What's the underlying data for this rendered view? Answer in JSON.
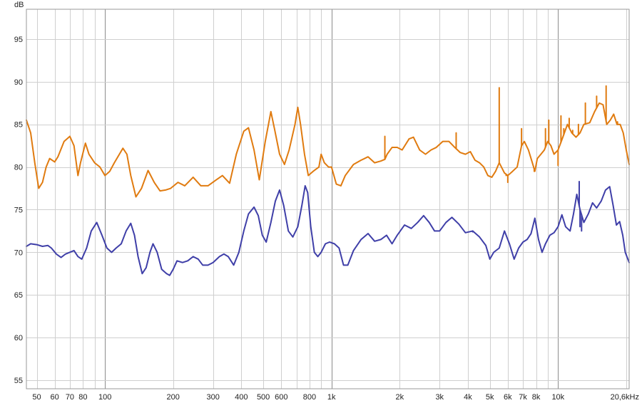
{
  "chart_data": {
    "type": "line",
    "title": "",
    "xlabel": "",
    "ylabel": "dB",
    "x_scale": "log",
    "x_unit": "Hz",
    "xlim": [
      45,
      20600
    ],
    "ylim": [
      54,
      98.5
    ],
    "grid": true,
    "legend": "none",
    "y_ticks": [
      55,
      60,
      65,
      70,
      75,
      80,
      85,
      90,
      95
    ],
    "y_tick_labels": [
      "55",
      "60",
      "65",
      "70",
      "75",
      "80",
      "85",
      "90",
      "95"
    ],
    "x_ticks": [
      50,
      60,
      70,
      80,
      100,
      200,
      300,
      400,
      500,
      600,
      800,
      1000,
      2000,
      3000,
      4000,
      5000,
      6000,
      7000,
      8000,
      10000,
      20600
    ],
    "x_tick_labels": [
      "50",
      "60",
      "70",
      "80",
      "100",
      "200",
      "300",
      "400",
      "500",
      "600",
      "800",
      "1k",
      "2k",
      "3k",
      "4k",
      "5k",
      "6k",
      "7k",
      "8k",
      "10k",
      "20,6kHz"
    ],
    "series": [
      {
        "color": "#e07b10",
        "points": [
          [
            45,
            85.5
          ],
          [
            47,
            84
          ],
          [
            49,
            80.5
          ],
          [
            51,
            77.5
          ],
          [
            53,
            78.2
          ],
          [
            55,
            80
          ],
          [
            57,
            81
          ],
          [
            60,
            80.6
          ],
          [
            62,
            81.2
          ],
          [
            66,
            83
          ],
          [
            70,
            83.6
          ],
          [
            73,
            82.5
          ],
          [
            76,
            79
          ],
          [
            78,
            80.5
          ],
          [
            82,
            82.8
          ],
          [
            85,
            81.5
          ],
          [
            90,
            80.5
          ],
          [
            95,
            80
          ],
          [
            100,
            79
          ],
          [
            105,
            79.5
          ],
          [
            110,
            80.5
          ],
          [
            120,
            82.2
          ],
          [
            125,
            81.5
          ],
          [
            130,
            79
          ],
          [
            137,
            76.5
          ],
          [
            145,
            77.5
          ],
          [
            155,
            79.6
          ],
          [
            165,
            78.2
          ],
          [
            175,
            77.2
          ],
          [
            185,
            77.3
          ],
          [
            195,
            77.5
          ],
          [
            210,
            78.2
          ],
          [
            225,
            77.8
          ],
          [
            245,
            78.8
          ],
          [
            265,
            77.8
          ],
          [
            285,
            77.8
          ],
          [
            310,
            78.5
          ],
          [
            330,
            79
          ],
          [
            355,
            78.1
          ],
          [
            380,
            81.5
          ],
          [
            410,
            84.2
          ],
          [
            430,
            84.6
          ],
          [
            455,
            82
          ],
          [
            480,
            78.5
          ],
          [
            510,
            83
          ],
          [
            540,
            86.5
          ],
          [
            560,
            84.5
          ],
          [
            590,
            81.5
          ],
          [
            620,
            80.3
          ],
          [
            650,
            82
          ],
          [
            690,
            85
          ],
          [
            710,
            87
          ],
          [
            730,
            85
          ],
          [
            760,
            81.5
          ],
          [
            790,
            79
          ],
          [
            830,
            79.5
          ],
          [
            880,
            80
          ],
          [
            900,
            81.5
          ],
          [
            930,
            80.5
          ],
          [
            970,
            80
          ],
          [
            1000,
            80
          ],
          [
            1050,
            78
          ],
          [
            1100,
            77.8
          ],
          [
            1150,
            79
          ],
          [
            1250,
            80.3
          ],
          [
            1350,
            80.8
          ],
          [
            1450,
            81.2
          ],
          [
            1550,
            80.5
          ],
          [
            1650,
            80.7
          ],
          [
            1720,
            80.9
          ],
          [
            1760,
            81.5
          ],
          [
            1850,
            82.3
          ],
          [
            1950,
            82.3
          ],
          [
            2050,
            82
          ],
          [
            2200,
            83.3
          ],
          [
            2300,
            83.5
          ],
          [
            2450,
            82
          ],
          [
            2600,
            81.5
          ],
          [
            2750,
            82
          ],
          [
            2900,
            82.3
          ],
          [
            3100,
            83
          ],
          [
            3300,
            83
          ],
          [
            3500,
            82.3
          ],
          [
            3700,
            81.7
          ],
          [
            3900,
            81.5
          ],
          [
            4100,
            81.8
          ],
          [
            4300,
            80.8
          ],
          [
            4500,
            80.5
          ],
          [
            4700,
            80
          ],
          [
            4900,
            79
          ],
          [
            5100,
            78.8
          ],
          [
            5300,
            79.5
          ],
          [
            5500,
            80.5
          ],
          [
            5800,
            79.3
          ],
          [
            6000,
            79
          ],
          [
            6300,
            79.5
          ],
          [
            6600,
            80
          ],
          [
            6900,
            82.5
          ],
          [
            7100,
            83
          ],
          [
            7400,
            82
          ],
          [
            7700,
            80.5
          ],
          [
            7900,
            79.5
          ],
          [
            8100,
            81
          ],
          [
            8400,
            81.5
          ],
          [
            8700,
            82
          ],
          [
            9000,
            83
          ],
          [
            9300,
            82.5
          ],
          [
            9600,
            81.5
          ],
          [
            10000,
            82
          ],
          [
            10500,
            83.5
          ],
          [
            11000,
            85
          ],
          [
            11500,
            84
          ],
          [
            12000,
            83.5
          ],
          [
            12500,
            84
          ],
          [
            13000,
            85
          ],
          [
            13800,
            85.2
          ],
          [
            14500,
            86.5
          ],
          [
            15200,
            87.5
          ],
          [
            15800,
            87.3
          ],
          [
            16400,
            85
          ],
          [
            17000,
            85.5
          ],
          [
            17600,
            86.2
          ],
          [
            18200,
            85
          ],
          [
            18800,
            85
          ],
          [
            19400,
            84
          ],
          [
            20000,
            82
          ],
          [
            20600,
            80.3
          ]
        ],
        "spikes": [
          [
            1720,
            83.6
          ],
          [
            3550,
            84
          ],
          [
            5500,
            89.3
          ],
          [
            5900,
            79
          ],
          [
            6000,
            78.2
          ],
          [
            6900,
            84.5
          ],
          [
            7850,
            79.5
          ],
          [
            8800,
            84.5
          ],
          [
            9100,
            85.5
          ],
          [
            10000,
            80.2
          ],
          [
            10300,
            86
          ],
          [
            10600,
            84.5
          ],
          [
            11200,
            85.7
          ],
          [
            11600,
            84.3
          ],
          [
            12300,
            85
          ],
          [
            13200,
            87.5
          ],
          [
            14800,
            88.3
          ],
          [
            16300,
            89.5
          ],
          [
            18300,
            85.3
          ]
        ]
      },
      {
        "color": "#3f3fa8",
        "points": [
          [
            45,
            70.7
          ],
          [
            47,
            71
          ],
          [
            50,
            70.9
          ],
          [
            53,
            70.7
          ],
          [
            56,
            70.8
          ],
          [
            58,
            70.5
          ],
          [
            61,
            69.8
          ],
          [
            64,
            69.4
          ],
          [
            67,
            69.8
          ],
          [
            70,
            70
          ],
          [
            73,
            70.2
          ],
          [
            76,
            69.5
          ],
          [
            79,
            69.2
          ],
          [
            83,
            70.5
          ],
          [
            87,
            72.5
          ],
          [
            92,
            73.5
          ],
          [
            97,
            72
          ],
          [
            102,
            70.5
          ],
          [
            107,
            70
          ],
          [
            112,
            70.5
          ],
          [
            118,
            71
          ],
          [
            124,
            72.5
          ],
          [
            130,
            73.4
          ],
          [
            135,
            72
          ],
          [
            140,
            69.5
          ],
          [
            146,
            67.5
          ],
          [
            152,
            68.2
          ],
          [
            158,
            70
          ],
          [
            163,
            71
          ],
          [
            170,
            70
          ],
          [
            178,
            68
          ],
          [
            187,
            67.5
          ],
          [
            193,
            67.3
          ],
          [
            200,
            68
          ],
          [
            208,
            69
          ],
          [
            220,
            68.8
          ],
          [
            232,
            69
          ],
          [
            245,
            69.5
          ],
          [
            258,
            69.2
          ],
          [
            270,
            68.5
          ],
          [
            285,
            68.5
          ],
          [
            300,
            68.8
          ],
          [
            320,
            69.5
          ],
          [
            335,
            69.8
          ],
          [
            350,
            69.5
          ],
          [
            370,
            68.5
          ],
          [
            390,
            70
          ],
          [
            410,
            72.5
          ],
          [
            430,
            74.5
          ],
          [
            455,
            75.3
          ],
          [
            475,
            74.3
          ],
          [
            495,
            72
          ],
          [
            515,
            71.2
          ],
          [
            540,
            73.5
          ],
          [
            565,
            76
          ],
          [
            590,
            77.3
          ],
          [
            615,
            75.5
          ],
          [
            645,
            72.5
          ],
          [
            675,
            71.8
          ],
          [
            710,
            73
          ],
          [
            740,
            75.5
          ],
          [
            765,
            77.8
          ],
          [
            785,
            77
          ],
          [
            810,
            73
          ],
          [
            840,
            70
          ],
          [
            870,
            69.5
          ],
          [
            900,
            70
          ],
          [
            940,
            71
          ],
          [
            980,
            71.2
          ],
          [
            1030,
            71
          ],
          [
            1080,
            70.5
          ],
          [
            1130,
            68.5
          ],
          [
            1180,
            68.5
          ],
          [
            1250,
            70.2
          ],
          [
            1350,
            71.5
          ],
          [
            1450,
            72.2
          ],
          [
            1550,
            71.3
          ],
          [
            1650,
            71.5
          ],
          [
            1750,
            72
          ],
          [
            1850,
            71
          ],
          [
            1950,
            72
          ],
          [
            2100,
            73.2
          ],
          [
            2250,
            72.8
          ],
          [
            2400,
            73.5
          ],
          [
            2550,
            74.3
          ],
          [
            2700,
            73.5
          ],
          [
            2850,
            72.5
          ],
          [
            3000,
            72.5
          ],
          [
            3200,
            73.5
          ],
          [
            3400,
            74.1
          ],
          [
            3650,
            73.3
          ],
          [
            3900,
            72.3
          ],
          [
            4200,
            72.5
          ],
          [
            4500,
            71.8
          ],
          [
            4800,
            70.8
          ],
          [
            5000,
            69.2
          ],
          [
            5200,
            70
          ],
          [
            5500,
            70.5
          ],
          [
            5800,
            72.5
          ],
          [
            6100,
            71
          ],
          [
            6400,
            69.2
          ],
          [
            6700,
            70.5
          ],
          [
            7000,
            71.2
          ],
          [
            7300,
            71.5
          ],
          [
            7600,
            72.2
          ],
          [
            7900,
            74
          ],
          [
            8200,
            71.5
          ],
          [
            8500,
            70
          ],
          [
            8800,
            71
          ],
          [
            9200,
            72
          ],
          [
            9600,
            72.3
          ],
          [
            10000,
            73
          ],
          [
            10400,
            74.4
          ],
          [
            10800,
            73
          ],
          [
            11300,
            72.5
          ],
          [
            11700,
            74.5
          ],
          [
            12100,
            76.8
          ],
          [
            12500,
            75
          ],
          [
            13000,
            73.5
          ],
          [
            13600,
            74.5
          ],
          [
            14200,
            75.8
          ],
          [
            14800,
            75.2
          ],
          [
            15500,
            76
          ],
          [
            16200,
            77.3
          ],
          [
            16900,
            77.7
          ],
          [
            17500,
            75.5
          ],
          [
            18100,
            73.2
          ],
          [
            18700,
            73.6
          ],
          [
            19300,
            72
          ],
          [
            19800,
            70
          ],
          [
            20600,
            68.8
          ]
        ],
        "spikes": [
          [
            4200,
            72.4
          ],
          [
            12400,
            78.3
          ],
          [
            12700,
            72.5
          ],
          [
            12500,
            73
          ]
        ]
      }
    ]
  }
}
